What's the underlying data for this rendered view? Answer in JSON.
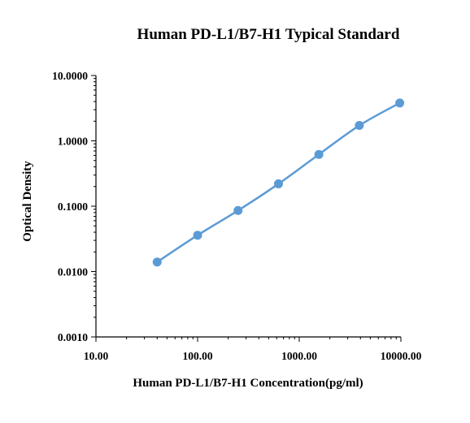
{
  "chart_data": {
    "type": "line",
    "title": "Human PD-L1/B7-H1 Typical Standard",
    "xlabel": "Human PD-L1/B7-H1  Concentration(pg/ml)",
    "ylabel": "Optical Density",
    "x_scale": "log",
    "y_scale": "log",
    "xlim": [
      10,
      10000
    ],
    "ylim": [
      0.001,
      10
    ],
    "x_ticks": [
      "10.00",
      "100.00",
      "1000.00",
      "10000.00"
    ],
    "y_ticks": [
      "10.0000",
      "1.0000",
      "0.1000",
      "0.0100",
      "0.0010"
    ],
    "grid": false,
    "series": [
      {
        "x": [
          40,
          100,
          250,
          625,
          1560,
          3900,
          9750
        ],
        "y": [
          0.014,
          0.036,
          0.086,
          0.22,
          0.62,
          1.72,
          3.8
        ]
      }
    ],
    "colors": {
      "series": "#5b9bd5"
    }
  }
}
